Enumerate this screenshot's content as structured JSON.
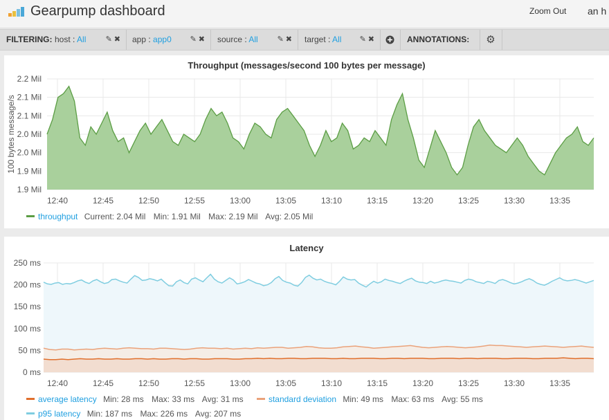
{
  "header": {
    "title": "Gearpump dashboard",
    "zoom_out": "Zoom Out",
    "user": "an h"
  },
  "filterbar": {
    "filtering_label": "FILTERING:",
    "filters": [
      {
        "key": "host",
        "value": "All"
      },
      {
        "key": "app",
        "value": "app0"
      },
      {
        "key": "source",
        "value": "All"
      },
      {
        "key": "target",
        "value": "All"
      }
    ],
    "annotations_label": "ANNOTATIONS:"
  },
  "colors": {
    "throughput_fill": "#a9d09c",
    "throughput_line": "#5b9d44",
    "avg_latency": "#e06f2c",
    "std_dev": "#eaa27a",
    "p95": "#7fcde0",
    "link": "#1f9fe0"
  },
  "throughput_panel": {
    "title": "Throughput (messages/second 100 bytes per message)",
    "legend": {
      "name": "throughput",
      "current": "Current: 2.04 Mil",
      "min": "Min: 1.91 Mil",
      "max": "Max: 2.19 Mil",
      "avg": "Avg: 2.05 Mil"
    }
  },
  "latency_panel": {
    "title": "Latency",
    "legend": [
      {
        "name": "average latency",
        "min": "Min: 28 ms",
        "max": "Max: 33 ms",
        "avg": "Avg: 31 ms"
      },
      {
        "name": "standard deviation",
        "min": "Min: 49 ms",
        "max": "Max: 63 ms",
        "avg": "Avg: 55 ms"
      },
      {
        "name": "p95 latency",
        "min": "Min: 187 ms",
        "max": "Max: 226 ms",
        "avg": "Avg: 207 ms"
      }
    ]
  },
  "chart_data": [
    {
      "type": "area",
      "title": "Throughput (messages/second 100 bytes per message)",
      "ylabel": "100 bytes message/s",
      "ylim": [
        1.9,
        2.2
      ],
      "y_tick_labels": [
        "1.9 Mil",
        "1.9 Mil",
        "2.0 Mil",
        "2.0 Mil",
        "2.1 Mil",
        "2.1 Mil",
        "2.2 Mil"
      ],
      "x_tick_labels": [
        "12:40",
        "12:45",
        "12:50",
        "12:55",
        "13:00",
        "13:05",
        "13:10",
        "13:15",
        "13:20",
        "13:25",
        "13:30",
        "13:35"
      ],
      "grid": true,
      "series": [
        {
          "name": "throughput",
          "values": [
            2.05,
            2.09,
            2.15,
            2.16,
            2.18,
            2.14,
            2.04,
            2.02,
            2.07,
            2.05,
            2.08,
            2.11,
            2.06,
            2.03,
            2.04,
            2.0,
            2.03,
            2.06,
            2.08,
            2.05,
            2.07,
            2.09,
            2.06,
            2.03,
            2.02,
            2.05,
            2.04,
            2.03,
            2.05,
            2.09,
            2.12,
            2.1,
            2.11,
            2.08,
            2.04,
            2.03,
            2.01,
            2.05,
            2.08,
            2.07,
            2.05,
            2.04,
            2.09,
            2.11,
            2.12,
            2.1,
            2.08,
            2.06,
            2.02,
            1.99,
            2.02,
            2.06,
            2.03,
            2.04,
            2.08,
            2.06,
            2.01,
            2.02,
            2.04,
            2.03,
            2.06,
            2.04,
            2.02,
            2.09,
            2.13,
            2.16,
            2.09,
            2.04,
            1.98,
            1.96,
            2.01,
            2.06,
            2.03,
            2.0,
            1.96,
            1.94,
            1.96,
            2.02,
            2.07,
            2.09,
            2.06,
            2.04,
            2.02,
            2.01,
            2.0,
            2.02,
            2.04,
            2.02,
            1.99,
            1.97,
            1.95,
            1.94,
            1.97,
            2.0,
            2.02,
            2.04,
            2.05,
            2.07,
            2.03,
            2.02,
            2.04
          ]
        }
      ]
    },
    {
      "type": "line",
      "title": "Latency",
      "ylim": [
        0,
        250
      ],
      "y_tick_labels": [
        "0 ms",
        "50 ms",
        "100 ms",
        "150 ms",
        "200 ms",
        "250 ms"
      ],
      "x_tick_labels": [
        "12:40",
        "12:45",
        "12:50",
        "12:55",
        "13:00",
        "13:05",
        "13:10",
        "13:15",
        "13:20",
        "13:25",
        "13:30",
        "13:35"
      ],
      "grid": true,
      "series": [
        {
          "name": "average latency",
          "values": [
            30,
            29,
            29,
            30,
            29,
            30,
            31,
            30,
            30,
            31,
            30,
            30,
            31,
            30,
            30,
            31,
            31,
            30,
            31,
            30,
            30,
            31,
            31,
            30,
            31,
            31,
            30,
            30,
            31,
            31,
            31,
            30,
            30,
            31,
            31,
            32,
            31,
            32,
            31,
            31,
            32,
            32,
            31,
            31,
            32,
            32,
            32,
            31,
            31,
            32,
            31,
            31,
            32,
            32,
            32,
            31,
            31,
            32,
            32,
            31,
            32,
            32,
            32,
            31,
            31,
            32,
            32,
            32,
            31,
            32,
            32,
            31,
            32,
            32,
            32,
            31,
            31,
            32,
            32,
            32,
            31,
            31,
            32,
            32,
            32,
            33,
            32,
            31,
            32,
            32,
            31
          ]
        },
        {
          "name": "standard deviation",
          "values": [
            55,
            52,
            51,
            53,
            53,
            51,
            52,
            53,
            52,
            54,
            55,
            54,
            53,
            55,
            56,
            55,
            54,
            54,
            53,
            55,
            55,
            54,
            53,
            52,
            53,
            55,
            56,
            55,
            55,
            54,
            55,
            53,
            54,
            55,
            54,
            56,
            55,
            56,
            57,
            57,
            55,
            56,
            57,
            59,
            58,
            56,
            55,
            55,
            56,
            58,
            59,
            60,
            58,
            57,
            55,
            56,
            57,
            58,
            59,
            60,
            61,
            59,
            57,
            56,
            57,
            58,
            59,
            58,
            57,
            56,
            57,
            58,
            60,
            62,
            61,
            61,
            60,
            59,
            58,
            57,
            58,
            59,
            60,
            59,
            58,
            57,
            58,
            59,
            60,
            58,
            57
          ]
        },
        {
          "name": "p95 latency",
          "values": [
            206,
            202,
            201,
            204,
            205,
            201,
            203,
            202,
            205,
            209,
            211,
            206,
            203,
            209,
            212,
            207,
            203,
            205,
            212,
            213,
            209,
            206,
            204,
            213,
            221,
            217,
            210,
            211,
            214,
            212,
            209,
            213,
            205,
            198,
            197,
            207,
            211,
            205,
            202,
            213,
            216,
            211,
            207,
            216,
            224,
            213,
            207,
            204,
            210,
            216,
            211,
            202,
            204,
            207,
            212,
            208,
            204,
            202,
            198,
            200,
            205,
            214,
            219,
            210,
            206,
            204,
            199,
            197,
            205,
            217,
            222,
            215,
            211,
            213,
            208,
            205,
            203,
            200,
            208,
            218,
            213,
            211,
            212,
            204,
            199,
            195,
            202,
            208,
            204,
            207,
            213,
            210,
            208,
            205,
            203,
            208,
            212,
            215,
            209,
            206,
            205,
            203,
            208,
            204,
            206,
            209,
            211,
            209,
            208,
            206,
            204,
            210,
            213,
            211,
            207,
            205,
            203,
            208,
            206,
            203,
            210,
            212,
            209,
            205,
            202,
            204,
            207,
            211,
            214,
            210,
            204,
            201,
            199,
            203,
            208,
            212,
            216,
            211,
            209,
            210,
            212,
            210,
            207,
            204,
            207,
            210
          ]
        }
      ]
    }
  ]
}
